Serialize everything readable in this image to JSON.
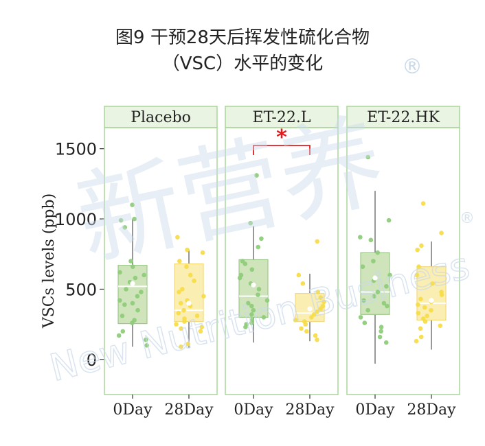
{
  "title_line1": "图9 干预28天后挥发性硫化合物",
  "title_line2": "（VSC）水平的变化",
  "watermark": {
    "text": "新营养",
    "sub": "New Nutrition Business",
    "mark": "®",
    "color": "#c9d9ea"
  },
  "colors": {
    "day0_fill": "#cfe4bb",
    "day0_stroke": "#9cc98a",
    "day0_point": "#8fcc7a",
    "day28_fill": "#fbeeb3",
    "day28_stroke": "#f2d97a",
    "day28_point": "#f7dc4a",
    "panel_border": "#a9d59a",
    "strip_fill": "#e9f4e2",
    "sig_color": "#e41a1c"
  },
  "chart_data": {
    "type": "box",
    "ylabel": "VSCs levels (ppb)",
    "ylim": [
      -250,
      1650
    ],
    "yticks": [
      0,
      500,
      1000,
      1500
    ],
    "categories": [
      "0Day",
      "28Day"
    ],
    "panels": [
      {
        "name": "Placebo",
        "boxes": [
          {
            "category": "0Day",
            "whisker_low": 90,
            "q1": 255,
            "median": 520,
            "q3": 670,
            "whisker_high": 1000,
            "mean": 540,
            "points": [
              1100,
              1000,
              990,
              940,
              700,
              660,
              620,
              600,
              580,
              550,
              500,
              480,
              450,
              420,
              400,
              390,
              350,
              310,
              280,
              260,
              200,
              170,
              140,
              100
            ]
          },
          {
            "category": "28Day",
            "whisker_low": 80,
            "q1": 270,
            "median": 350,
            "q3": 680,
            "whisker_high": 780,
            "mean": 400,
            "points": [
              870,
              780,
              760,
              700,
              660,
              600,
              560,
              500,
              480,
              450,
              420,
              400,
              380,
              350,
              330,
              310,
              290,
              270,
              250,
              230,
              220,
              200,
              110,
              90
            ]
          }
        ]
      },
      {
        "name": "ET-22.L",
        "boxes": [
          {
            "category": "0Day",
            "whisker_low": 120,
            "q1": 300,
            "median": 450,
            "q3": 710,
            "whisker_high": 950,
            "mean": 530,
            "points": [
              1310,
              970,
              860,
              800,
              700,
              680,
              640,
              600,
              580,
              540,
              500,
              460,
              420,
              400,
              380,
              350,
              320,
              300,
              280,
              260,
              250,
              230
            ]
          },
          {
            "category": "28Day",
            "whisker_low": 130,
            "q1": 270,
            "median": 330,
            "q3": 470,
            "whisker_high": 610,
            "mean": 360,
            "points": [
              840,
              600,
              540,
              480,
              440,
              410,
              380,
              360,
              340,
              320,
              300,
              280,
              270,
              250,
              220,
              200,
              170,
              140
            ]
          }
        ]
      },
      {
        "name": "ET-22.HK",
        "boxes": [
          {
            "category": "0Day",
            "whisker_low": -30,
            "q1": 320,
            "median": 480,
            "q3": 760,
            "whisker_high": 1200,
            "mean": 580,
            "points": [
              1440,
              990,
              870,
              850,
              760,
              700,
              660,
              600,
              560,
              520,
              480,
              450,
              420,
              400,
              380,
              350,
              300,
              260,
              230,
              200,
              160,
              120
            ]
          },
          {
            "category": "28Day",
            "whisker_low": 70,
            "q1": 280,
            "median": 400,
            "q3": 660,
            "whisker_high": 840,
            "mean": 420,
            "points": [
              1110,
              900,
              810,
              780,
              660,
              600,
              540,
              480,
              460,
              430,
              410,
              390,
              370,
              350,
              330,
              310,
              290,
              270,
              240,
              220,
              160,
              130
            ]
          }
        ]
      }
    ],
    "significance": [
      {
        "panel": "ET-22.L",
        "between": [
          "0Day",
          "28Day"
        ],
        "label": "*"
      }
    ]
  }
}
